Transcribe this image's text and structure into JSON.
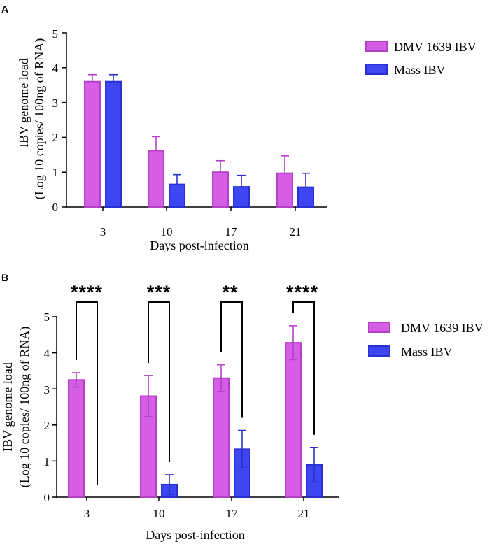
{
  "colors": {
    "dmv_fill": "#d65ee6",
    "dmv_stroke": "#b440c4",
    "mass_fill": "#3d46f0",
    "mass_stroke": "#2a2fcf",
    "axis": "#000000"
  },
  "chart_data": [
    {
      "panel": "A",
      "type": "bar",
      "categories": [
        "3",
        "10",
        "17",
        "21"
      ],
      "xlabel": "Days post-infection",
      "ylabel_line1": "IBV genome load",
      "ylabel_line2": "(Log 10 copies/ 100ng of RNA)",
      "ylim": [
        0,
        5
      ],
      "yticks": [
        "0",
        "1",
        "2",
        "3",
        "4",
        "5"
      ],
      "legend_position": "top-right",
      "series": [
        {
          "name": "DMV 1639 IBV",
          "values": [
            3.6,
            1.62,
            1.0,
            0.97
          ],
          "errors": [
            0.2,
            0.4,
            0.33,
            0.5
          ]
        },
        {
          "name": "Mass IBV",
          "values": [
            3.6,
            0.65,
            0.58,
            0.57
          ],
          "errors": [
            0.2,
            0.28,
            0.33,
            0.4
          ]
        }
      ],
      "significance": []
    },
    {
      "panel": "B",
      "type": "bar",
      "categories": [
        "3",
        "10",
        "17",
        "21"
      ],
      "xlabel": "Days post-infection",
      "ylabel_line1": "IBV genome load",
      "ylabel_line2": "(Log 10 copies/ 100ng of RNA)",
      "ylim": [
        0,
        5
      ],
      "yticks": [
        "0",
        "1",
        "2",
        "3",
        "4",
        "5"
      ],
      "legend_position": "top-right",
      "series": [
        {
          "name": "DMV 1639 IBV",
          "values": [
            3.25,
            2.8,
            3.3,
            4.28
          ],
          "errors": [
            0.2,
            0.57,
            0.37,
            0.47
          ]
        },
        {
          "name": "Mass IBV",
          "values": [
            0.0,
            0.35,
            1.33,
            0.9
          ],
          "errors": [
            0.0,
            0.27,
            0.52,
            0.48
          ]
        }
      ],
      "significance": [
        "****",
        "***",
        "**",
        "****"
      ]
    }
  ]
}
